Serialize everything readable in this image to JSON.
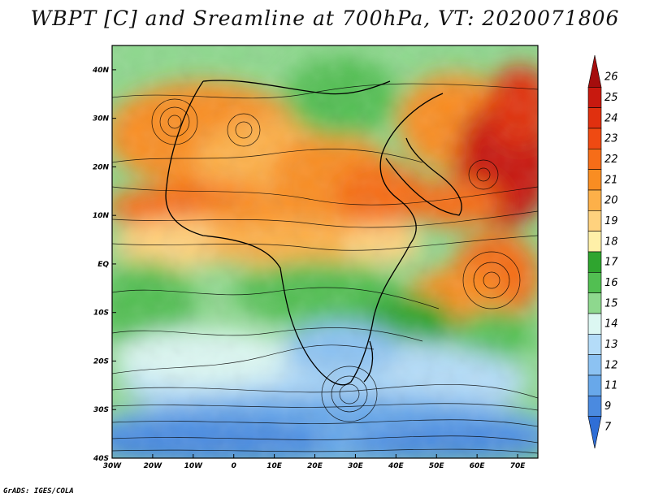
{
  "title": "WBPT [C] and Sreamline at 700hPa, VT: 2020071806",
  "credit": "GrADS: IGES/COLA",
  "map": {
    "lon_range": [
      -30,
      75
    ],
    "lat_range": [
      -40,
      45
    ],
    "lon_ticks": [
      {
        "v": -30,
        "label": "30W"
      },
      {
        "v": -20,
        "label": "20W"
      },
      {
        "v": -10,
        "label": "10W"
      },
      {
        "v": 0,
        "label": "0"
      },
      {
        "v": 10,
        "label": "10E"
      },
      {
        "v": 20,
        "label": "20E"
      },
      {
        "v": 30,
        "label": "30E"
      },
      {
        "v": 40,
        "label": "40E"
      },
      {
        "v": 50,
        "label": "50E"
      },
      {
        "v": 60,
        "label": "60E"
      },
      {
        "v": 70,
        "label": "70E"
      }
    ],
    "lat_ticks": [
      {
        "v": 40,
        "label": "40N"
      },
      {
        "v": 30,
        "label": "30N"
      },
      {
        "v": 20,
        "label": "20N"
      },
      {
        "v": 10,
        "label": "10N"
      },
      {
        "v": 0,
        "label": "EQ"
      },
      {
        "v": -10,
        "label": "10S"
      },
      {
        "v": -20,
        "label": "20S"
      },
      {
        "v": -30,
        "label": "30S"
      },
      {
        "v": -40,
        "label": "40S"
      }
    ]
  },
  "colorbar": {
    "labels": [
      "26",
      "25",
      "24",
      "23",
      "22",
      "21",
      "20",
      "19",
      "18",
      "17",
      "16",
      "15",
      "14",
      "13",
      "12",
      "11",
      "9",
      "7"
    ],
    "colors": [
      "#a50d0d",
      "#c8190f",
      "#e0300f",
      "#ef4a12",
      "#f66d18",
      "#f98d22",
      "#fdb049",
      "#ffd27e",
      "#fff0a8",
      "#2fa52f",
      "#52bf52",
      "#8ed88e",
      "#dcf7f2",
      "#b4dcf8",
      "#8cc2f2",
      "#68a8ea",
      "#4a8ae0",
      "#2f6ed6"
    ]
  }
}
